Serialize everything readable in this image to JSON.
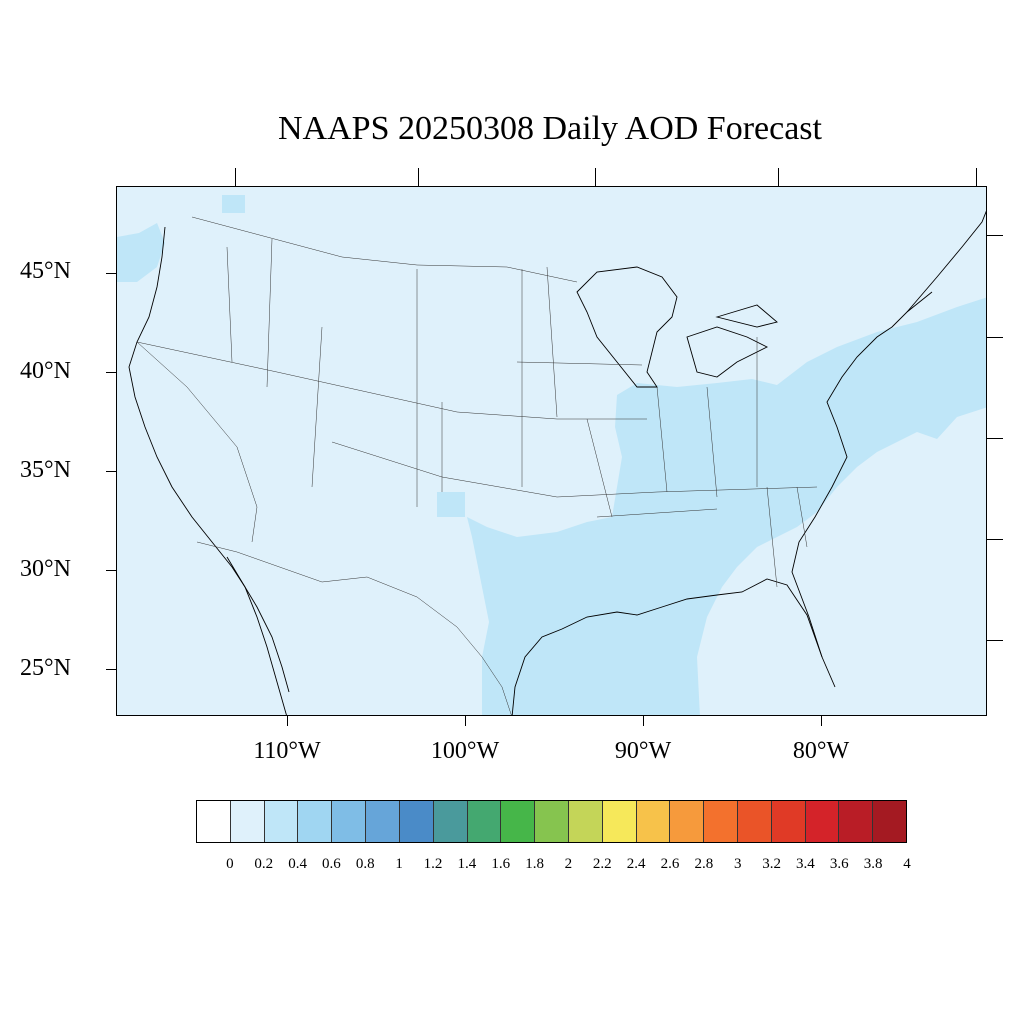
{
  "title": "NAAPS 20250308 Daily AOD Forecast",
  "lat_labels": [
    "45°N",
    "40°N",
    "35°N",
    "30°N",
    "25°N"
  ],
  "lon_labels": [
    "110°W",
    "100°W",
    "90°W",
    "80°W"
  ],
  "colorbar": {
    "labels": [
      "0",
      "0.2",
      "0.4",
      "0.6",
      "0.8",
      "1",
      "1.2",
      "1.4",
      "1.6",
      "1.8",
      "2",
      "2.2",
      "2.4",
      "2.6",
      "2.8",
      "3",
      "3.2",
      "3.4",
      "3.6",
      "3.8",
      "4"
    ],
    "colors": [
      "#ffffff",
      "#dff1fb",
      "#bfe6f8",
      "#a0d6f2",
      "#7fbde6",
      "#66a5d9",
      "#4a8bc8",
      "#4a9a9c",
      "#44a870",
      "#46b649",
      "#86c44f",
      "#c4d558",
      "#f6e85a",
      "#f7c24a",
      "#f69a3c",
      "#f3712d",
      "#ea5428",
      "#e03a26",
      "#d42329",
      "#b91d26",
      "#a41a22",
      "#8a151b"
    ]
  },
  "map": {
    "background_aod": "0-0.2",
    "background_color": "#dff1fb",
    "enhanced_color": "#bfe6f8",
    "border_color": "#000000"
  }
}
